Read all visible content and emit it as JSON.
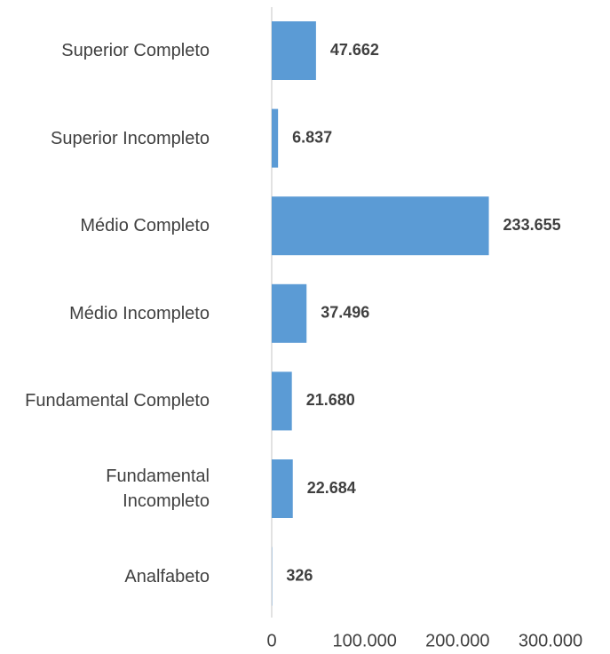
{
  "chart_data": {
    "type": "barh",
    "categories": [
      "Superior Completo",
      "Superior Incompleto",
      "Médio Completo",
      "Médio Incompleto",
      "Fundamental Completo",
      "Fundamental Incompleto",
      "Analfabeto"
    ],
    "values": [
      47662,
      6837,
      233655,
      37496,
      21680,
      22684,
      326
    ],
    "value_labels": [
      "47.662",
      "6.837",
      "233.655",
      "37.496",
      "21.680",
      "22.684",
      "326"
    ],
    "color": "#5b9bd5",
    "xlim": [
      0,
      300000
    ],
    "xticks": [
      0,
      {
        "value": 100000,
        "label": "100.000"
      },
      {
        "value": 200000,
        "label": "200.000"
      },
      {
        "value": 300000,
        "label": "300.000"
      }
    ]
  }
}
